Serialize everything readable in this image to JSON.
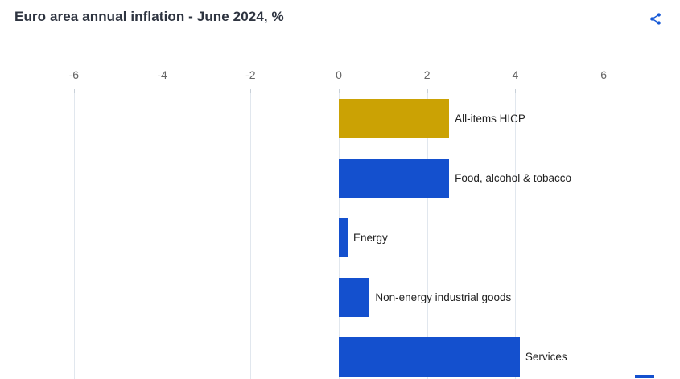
{
  "header": {
    "title": "Euro area annual inflation - June 2024, %"
  },
  "chart_data": {
    "type": "bar",
    "orientation": "horizontal",
    "title": "Euro area annual inflation - June 2024, %",
    "categories": [
      "All-items HICP",
      "Food, alcohol & tobacco",
      "Energy",
      "Non-energy industrial goods",
      "Services"
    ],
    "values": [
      2.5,
      2.5,
      0.2,
      0.7,
      4.1
    ],
    "bar_colors": [
      "#cba204",
      "#1450ce",
      "#1450ce",
      "#1450ce",
      "#1450ce"
    ],
    "x_ticks": [
      -6,
      -4,
      -2,
      0,
      2,
      4,
      6
    ],
    "xlim": [
      -7,
      7
    ],
    "unit": "%",
    "grid": true,
    "axis_position": "top",
    "label_position": "outside-end",
    "legend": "none"
  },
  "colors": {
    "gold": "#cba204",
    "blue": "#1450ce",
    "share_icon": "#1659d6",
    "axis_label": "#666666",
    "gridline": "#e1e7ee",
    "tick_mark": "#c8d0d8",
    "title_text": "#2e3440",
    "category_label": "#222222"
  }
}
